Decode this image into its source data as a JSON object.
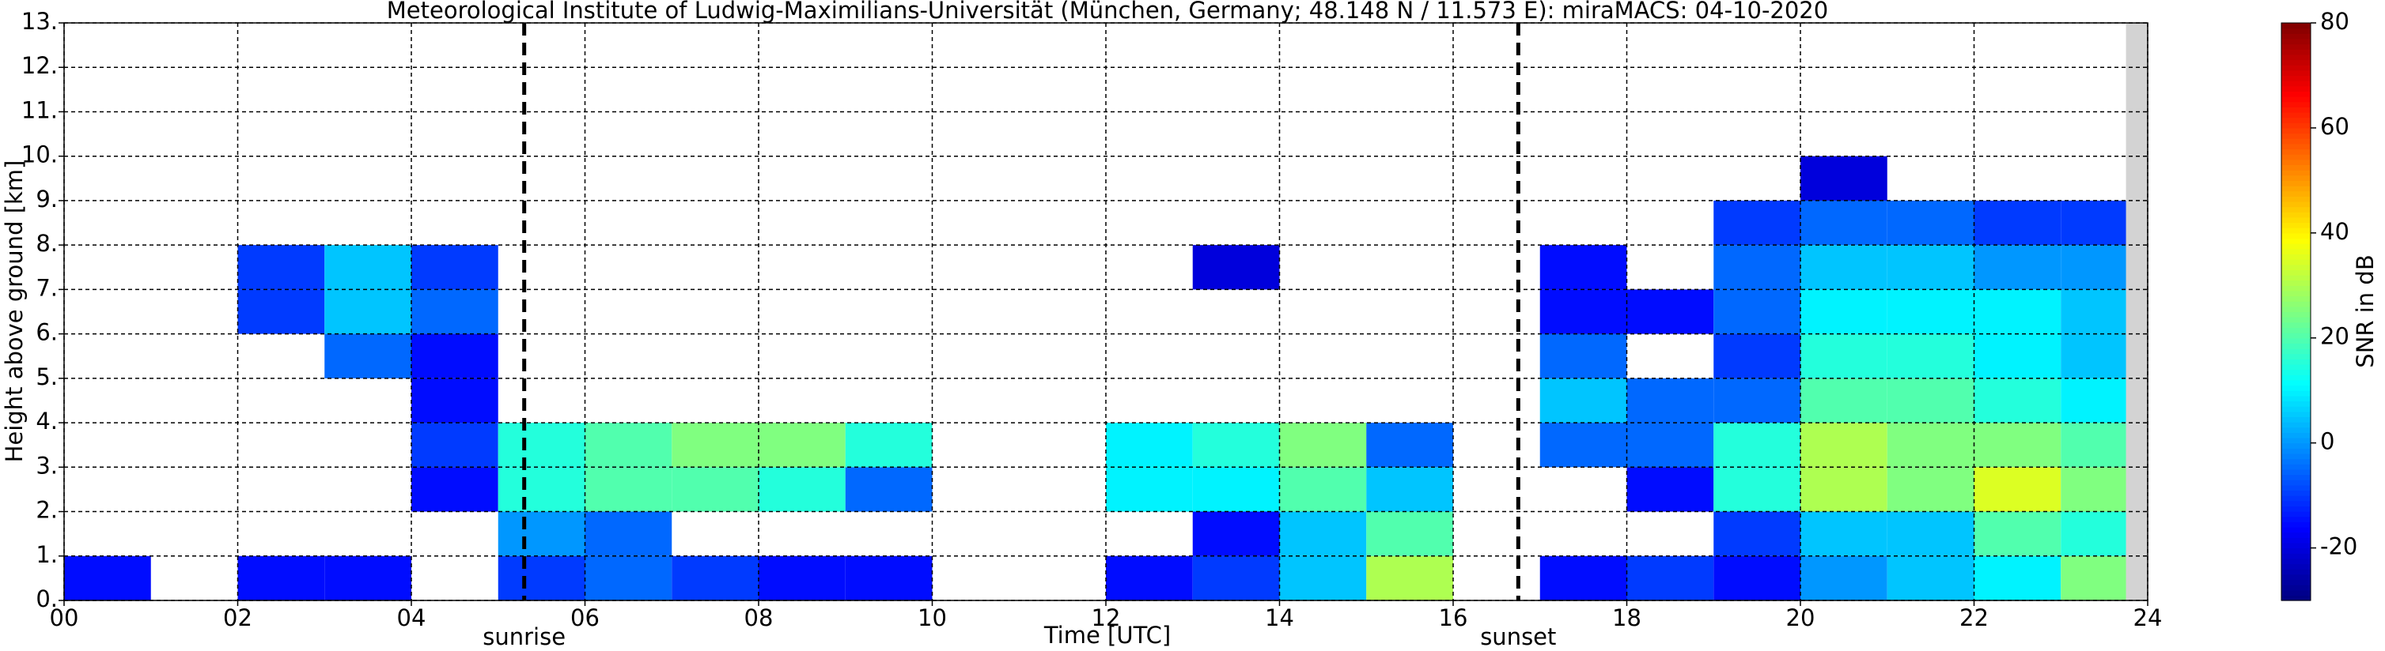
{
  "chart_data": {
    "type": "heatmap",
    "title": "Meteorological Institute of Ludwig-Maximilians-Universität (München, Germany; 48.148 N / 11.573 E):    miraMACS: 04-10-2020",
    "x_label": "Time [UTC]",
    "y_label": "Height above ground [km]",
    "colorbar_label": "SNR in dB",
    "x": [
      0,
      1,
      2,
      3,
      4,
      5,
      6,
      7,
      8,
      9,
      10,
      11,
      12,
      13,
      14,
      15,
      16,
      17,
      18,
      19,
      20,
      21,
      22,
      23,
      24
    ],
    "y": [
      0,
      1,
      2,
      3,
      4,
      5,
      6,
      7,
      8,
      9,
      10,
      11,
      12,
      13
    ],
    "z": [
      [
        -15,
        null,
        -15,
        -15,
        null,
        -10,
        -5,
        -10,
        -15,
        -15,
        null,
        null,
        -15,
        -10,
        5,
        30,
        null,
        -15,
        -10,
        -15,
        0,
        5,
        10,
        25
      ],
      [
        null,
        null,
        null,
        null,
        null,
        0,
        -5,
        null,
        null,
        null,
        null,
        null,
        null,
        -15,
        5,
        20,
        null,
        null,
        null,
        -10,
        5,
        5,
        20,
        15
      ],
      [
        null,
        null,
        null,
        null,
        -15,
        15,
        20,
        20,
        15,
        -5,
        null,
        null,
        10,
        10,
        20,
        5,
        null,
        null,
        -15,
        15,
        30,
        25,
        35,
        25
      ],
      [
        null,
        null,
        null,
        null,
        -10,
        15,
        20,
        25,
        25,
        15,
        null,
        null,
        10,
        15,
        25,
        -5,
        null,
        -5,
        -5,
        15,
        30,
        25,
        25,
        20
      ],
      [
        null,
        null,
        null,
        null,
        -15,
        null,
        null,
        null,
        null,
        null,
        null,
        null,
        null,
        null,
        null,
        null,
        null,
        5,
        -5,
        -5,
        20,
        20,
        15,
        10
      ],
      [
        null,
        null,
        null,
        -5,
        -15,
        null,
        null,
        null,
        null,
        null,
        null,
        null,
        null,
        null,
        null,
        null,
        null,
        -5,
        null,
        -10,
        15,
        15,
        10,
        5
      ],
      [
        null,
        null,
        -10,
        5,
        -5,
        null,
        null,
        null,
        null,
        null,
        null,
        null,
        null,
        null,
        null,
        null,
        null,
        -15,
        -15,
        -5,
        10,
        10,
        10,
        5
      ],
      [
        null,
        null,
        -10,
        5,
        -10,
        null,
        null,
        null,
        null,
        null,
        null,
        null,
        null,
        -20,
        null,
        null,
        null,
        -15,
        null,
        -5,
        5,
        5,
        0,
        0
      ],
      [
        null,
        null,
        null,
        null,
        null,
        null,
        null,
        null,
        null,
        null,
        null,
        null,
        null,
        null,
        null,
        null,
        null,
        null,
        null,
        -10,
        -5,
        -5,
        -10,
        -10
      ],
      [
        null,
        null,
        null,
        null,
        null,
        null,
        null,
        null,
        null,
        null,
        null,
        null,
        null,
        null,
        null,
        null,
        null,
        null,
        null,
        null,
        -20,
        null,
        null,
        null
      ],
      [
        null,
        null,
        null,
        null,
        null,
        null,
        null,
        null,
        null,
        null,
        null,
        null,
        null,
        null,
        null,
        null,
        null,
        null,
        null,
        null,
        null,
        null,
        null,
        null
      ],
      [
        null,
        null,
        null,
        null,
        null,
        null,
        null,
        null,
        null,
        null,
        null,
        null,
        null,
        null,
        null,
        null,
        null,
        null,
        null,
        null,
        null,
        null,
        null,
        null
      ],
      [
        null,
        null,
        null,
        null,
        null,
        null,
        null,
        null,
        null,
        null,
        null,
        null,
        null,
        null,
        null,
        null,
        null,
        null,
        null,
        null,
        null,
        null,
        null,
        null
      ]
    ],
    "xlim": [
      0,
      24
    ],
    "ylim": [
      0,
      13
    ],
    "zlim": [
      -30,
      80
    ],
    "xticks": [
      {
        "value": 0,
        "label": "00"
      },
      {
        "value": 2,
        "label": "02"
      },
      {
        "value": 4,
        "label": "04"
      },
      {
        "value": 6,
        "label": "06"
      },
      {
        "value": 8,
        "label": "08"
      },
      10,
      12,
      14,
      16,
      18,
      20,
      22,
      24
    ],
    "yticks": [
      {
        "value": 0,
        "label": "0."
      },
      {
        "value": 1,
        "label": "1."
      },
      {
        "value": 2,
        "label": "2."
      },
      {
        "value": 3,
        "label": "3."
      },
      {
        "value": 4,
        "label": "4."
      },
      {
        "value": 5,
        "label": "5."
      },
      {
        "value": 6,
        "label": "6."
      },
      {
        "value": 7,
        "label": "7."
      },
      {
        "value": 8,
        "label": "8."
      },
      {
        "value": 9,
        "label": "9."
      },
      {
        "value": 10,
        "label": "10."
      },
      {
        "value": 11,
        "label": "11."
      },
      {
        "value": 12,
        "label": "12."
      },
      {
        "value": 13,
        "label": "13."
      }
    ],
    "zticks": [
      -20,
      0,
      20,
      40,
      60,
      80
    ],
    "colormap": "jet",
    "grid": true,
    "annotations": [
      {
        "x": 5.3,
        "label": "sunrise"
      },
      {
        "x": 16.75,
        "label": "sunset"
      }
    ],
    "nodata_x": [
      23.75,
      24
    ]
  }
}
